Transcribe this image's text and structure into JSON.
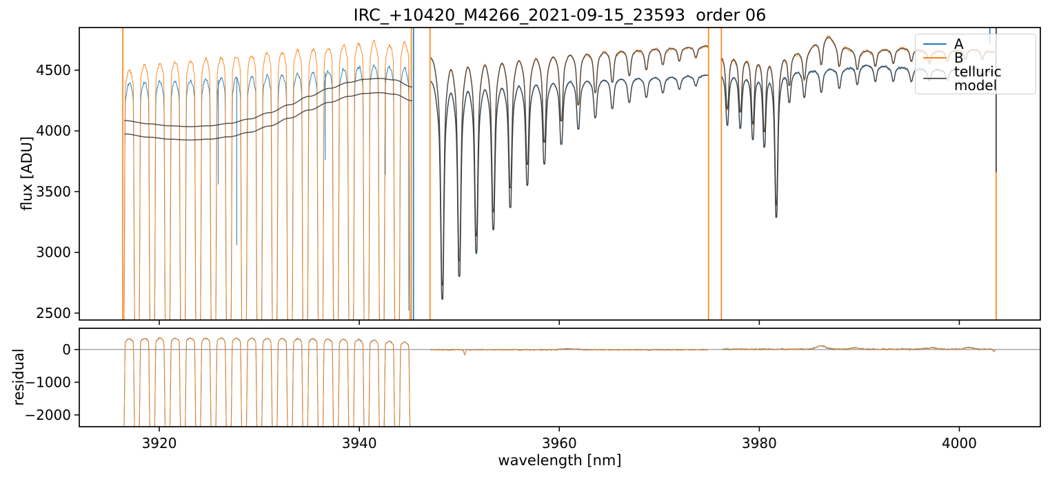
{
  "figure": {
    "kind": "matplotlib-spectrum-figure",
    "background": "#ffffff"
  },
  "chart_data": {
    "type": "line",
    "title": "IRC_+10420_M4266_2021-09-15_23593  order 06",
    "xlabel": "wavelength [nm]",
    "xlim": [
      3912.0,
      4008.1
    ],
    "xticks": [
      3920,
      3940,
      3960,
      3980,
      4000
    ],
    "xtick_labels": [
      "3920",
      "3940",
      "3960",
      "3980",
      "4000"
    ],
    "grid": false,
    "panels": [
      {
        "name": "flux",
        "ylabel": "flux [ADU]",
        "ylim": [
          2443,
          4851
        ],
        "yticks": [
          2500,
          3000,
          3500,
          4000,
          4500
        ],
        "ytick_labels": [
          "2500",
          "3000",
          "3500",
          "4000",
          "4500"
        ]
      },
      {
        "name": "residual",
        "ylabel": "residual",
        "ylim": [
          -2360,
          650
        ],
        "yticks": [
          0,
          -1000,
          -2000
        ],
        "ytick_labels": [
          "0",
          "−1000",
          "−2000"
        ],
        "zero_line": 0
      }
    ],
    "legend": {
      "location": "upper right",
      "entries": [
        {
          "label": "A",
          "color": "#1f77b4"
        },
        {
          "label": "B",
          "color": "#ff7f0e"
        },
        {
          "label": "telluric model",
          "color": "#595959"
        }
      ]
    },
    "series_colors": {
      "A": "#1f77b4",
      "B": "#ff7f0e",
      "model": "#3a3a3a"
    },
    "seed": 1234,
    "spectral_segments": [
      {
        "id": "segment-1",
        "kind": "comb",
        "range": [
          3916.4,
          3945.3
        ],
        "period": 1.53,
        "tooth0": 3917.0,
        "gap_frac": 0.145,
        "rise_frac": 0.095,
        "shoulder_drop": 130,
        "floor": 2350,
        "noise": 26,
        "envelopes": {
          "A": [
            [
              3916.4,
              4380
            ],
            [
              3919,
              4400
            ],
            [
              3922,
              4410
            ],
            [
              3925,
              4425
            ],
            [
              3928,
              4435
            ],
            [
              3931,
              4450
            ],
            [
              3934,
              4470
            ],
            [
              3937,
              4495
            ],
            [
              3940,
              4525
            ],
            [
              3942,
              4535
            ],
            [
              3943.5,
              4520
            ],
            [
              3945.3,
              4505
            ]
          ],
          "B": [
            [
              3916.4,
              4495
            ],
            [
              3919,
              4545
            ],
            [
              3922,
              4575
            ],
            [
              3925,
              4595
            ],
            [
              3928,
              4615
            ],
            [
              3931,
              4640
            ],
            [
              3934,
              4665
            ],
            [
              3937,
              4690
            ],
            [
              3939.5,
              4715
            ],
            [
              3941.5,
              4730
            ],
            [
              3943,
              4700
            ],
            [
              3944.5,
              4730
            ],
            [
              3945.3,
              4720
            ]
          ]
        },
        "models": [
          [
            [
              3916.5,
              4085
            ],
            [
              3919,
              4058
            ],
            [
              3921,
              4042
            ],
            [
              3923,
              4035
            ],
            [
              3925,
              4042
            ],
            [
              3927,
              4062
            ],
            [
              3929,
              4098
            ],
            [
              3931,
              4150
            ],
            [
              3933,
              4215
            ],
            [
              3935,
              4285
            ],
            [
              3937,
              4350
            ],
            [
              3939,
              4400
            ],
            [
              3940.5,
              4425
            ],
            [
              3942,
              4432
            ],
            [
              3943.5,
              4420
            ],
            [
              3945.3,
              4362
            ]
          ],
          [
            [
              3916.5,
              3975
            ],
            [
              3919,
              3948
            ],
            [
              3921,
              3932
            ],
            [
              3923,
              3925
            ],
            [
              3925,
              3932
            ],
            [
              3927,
              3952
            ],
            [
              3929,
              3988
            ],
            [
              3931,
              4040
            ],
            [
              3933,
              4105
            ],
            [
              3935,
              4172
            ],
            [
              3937,
              4235
            ],
            [
              3939,
              4285
            ],
            [
              3940.5,
              4308
            ],
            [
              3942,
              4315
            ],
            [
              3943.5,
              4302
            ],
            [
              3945.3,
              4248
            ]
          ]
        ],
        "extra_dips": [
          {
            "x": 3925.9,
            "from": 4420,
            "to": 3560
          },
          {
            "x": 3927.75,
            "from": 4430,
            "to": 3060
          },
          {
            "x": 3936.6,
            "from": 4480,
            "to": 3760
          },
          {
            "x": 3942.6,
            "from": 4520,
            "to": 3640
          },
          {
            "x": 3944.95,
            "from": 4500,
            "to": 2520
          }
        ]
      },
      {
        "id": "segment-2",
        "kind": "lines",
        "range": [
          3947.15,
          3974.9
        ],
        "base": {
          "A": [
            [
              3947.2,
              4415
            ],
            [
              3952,
              4420
            ],
            [
              3957,
              4425
            ],
            [
              3962,
              4432
            ],
            [
              3967,
              4440
            ],
            [
              3971,
              4450
            ],
            [
              3974.9,
              4460
            ]
          ],
          "B": [
            [
              3947.2,
              4610
            ],
            [
              3952,
              4625
            ],
            [
              3957,
              4640
            ],
            [
              3962,
              4655
            ],
            [
              3967,
              4672
            ],
            [
              3971,
              4688
            ],
            [
              3974.9,
              4700
            ]
          ]
        },
        "noise": {
          "A": 15,
          "B": 22
        },
        "w_core": 0.13,
        "w_wing": 0.4,
        "line_centers": [
          3948.3,
          3950.0,
          3951.7,
          3953.4,
          3955.1,
          3956.8,
          3958.5,
          3960.2,
          3961.9,
          3963.6,
          3965.3,
          3967.0,
          3968.7,
          3970.35,
          3972.0,
          3973.65
        ],
        "line_tmin": [
          0.592,
          0.635,
          0.678,
          0.721,
          0.762,
          0.803,
          0.842,
          0.878,
          0.906,
          0.927,
          0.943,
          0.954,
          0.963,
          0.97,
          0.976,
          0.981
        ]
      },
      {
        "id": "segment-3",
        "kind": "lines",
        "range": [
          3976.25,
          4003.6
        ],
        "base": {
          "A": [
            [
              3976.3,
              4475
            ],
            [
              3979,
              4465
            ],
            [
              3982,
              4475
            ],
            [
              3985,
              4495
            ],
            [
              3988,
              4510
            ],
            [
              3991,
              4540
            ],
            [
              3993.5,
              4525
            ],
            [
              3996,
              4505
            ],
            [
              3999,
              4500
            ],
            [
              4001.5,
              4515
            ],
            [
              4003.6,
              4490
            ]
          ],
          "B": [
            [
              3976.3,
              4625
            ],
            [
              3979,
              4615
            ],
            [
              3982,
              4620
            ],
            [
              3984.5,
              4650
            ],
            [
              3986,
              4730
            ],
            [
              3986.8,
              4775
            ],
            [
              3988,
              4700
            ],
            [
              3990,
              4655
            ],
            [
              3992,
              4665
            ],
            [
              3994.5,
              4680
            ],
            [
              3997,
              4655
            ],
            [
              3999.5,
              4660
            ],
            [
              4001.5,
              4670
            ],
            [
              4003.6,
              4650
            ]
          ]
        },
        "noise": {
          "A": 20,
          "B": 26
        },
        "w_core": 0.12,
        "w_wing": 0.32,
        "line_centers": [
          3976.8,
          3978.1,
          3979.35,
          3980.5,
          3981.7,
          3983.0,
          3984.5,
          3986.2,
          3988.0,
          3989.8,
          3991.6,
          3993.4,
          3995.2,
          3997.0,
          3998.8,
          4000.6,
          4002.3
        ],
        "line_tmin": [
          0.905,
          0.9,
          0.88,
          0.865,
          0.735,
          0.945,
          0.952,
          0.96,
          0.965,
          0.968,
          0.972,
          0.975,
          0.978,
          0.98,
          0.982,
          0.984,
          0.985
        ]
      }
    ],
    "vlines": [
      {
        "x": 3916.35,
        "series": "B"
      },
      {
        "x": 3945.2,
        "series": "B"
      },
      {
        "x": 3945.42,
        "series": "A"
      },
      {
        "x": 3947.07,
        "series": "B"
      },
      {
        "x": 3974.92,
        "series": "B"
      },
      {
        "x": 3976.2,
        "series": "B"
      },
      {
        "x": 4003.68,
        "series": "B"
      },
      {
        "x": 4003.68,
        "series": "model",
        "from": 4851,
        "to": 3660
      },
      {
        "x": 4003.05,
        "series": "A",
        "from": 4851,
        "to": 4720
      }
    ],
    "residual_segments": [
      {
        "id": "residual-segment-1",
        "kind": "comb",
        "range": [
          3916.4,
          3945.3
        ],
        "period": 1.53,
        "tooth0": 3917.0,
        "gap_frac": 0.145,
        "rise_frac": 0.095,
        "shoulder_drop": 100,
        "floor": -2550,
        "noise": 30,
        "envelope": [
          [
            3916.4,
            330
          ],
          [
            3920,
            345
          ],
          [
            3925,
            350
          ],
          [
            3930,
            340
          ],
          [
            3935,
            330
          ],
          [
            3939,
            310
          ],
          [
            3941,
            290
          ],
          [
            3942.5,
            255
          ],
          [
            3944,
            230
          ],
          [
            3945.3,
            215
          ]
        ]
      },
      {
        "id": "residual-segment-2",
        "kind": "noise",
        "range": [
          3947.15,
          3974.9
        ],
        "mean": -8,
        "amp": 26,
        "features": [
          {
            "x": 3950.55,
            "h": -150,
            "w": 0.07
          },
          {
            "x": 3961.0,
            "h": 30,
            "w": 0.8
          }
        ]
      },
      {
        "id": "residual-segment-3",
        "kind": "noise",
        "range": [
          3976.25,
          4003.6
        ],
        "mean": 10,
        "amp": 34,
        "features": [
          {
            "x": 3986.2,
            "h": 100,
            "w": 0.5
          },
          {
            "x": 3989.6,
            "h": 45,
            "w": 0.4
          },
          {
            "x": 3997.2,
            "h": 40,
            "w": 0.6
          },
          {
            "x": 4000.9,
            "h": 55,
            "w": 0.45
          },
          {
            "x": 4003.45,
            "h": -70,
            "w": 0.08
          }
        ]
      }
    ]
  }
}
